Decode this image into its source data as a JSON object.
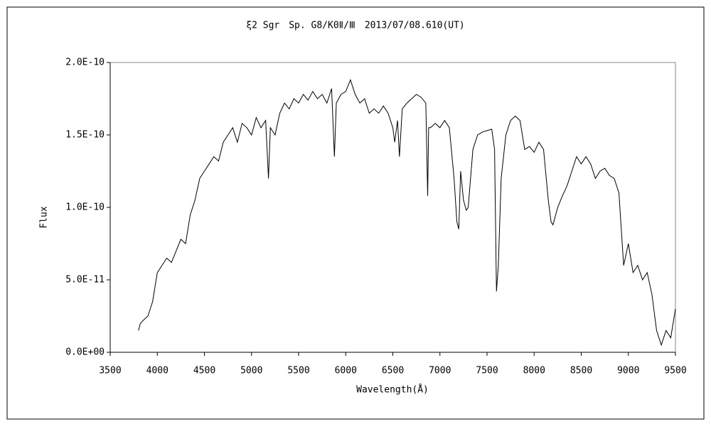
{
  "chart_data": {
    "type": "line",
    "title": "ξ2 Sgr　Sp. G8/K0Ⅱ/Ⅲ　2013/07/08.610(UT)",
    "x_label": "Wavelength(Å)",
    "y_label": "Flux",
    "x": [
      3800,
      3820,
      3850,
      3900,
      3950,
      4000,
      4050,
      4100,
      4150,
      4200,
      4250,
      4300,
      4350,
      4400,
      4450,
      4500,
      4550,
      4600,
      4650,
      4700,
      4750,
      4800,
      4850,
      4900,
      4950,
      5000,
      5050,
      5100,
      5150,
      5180,
      5200,
      5250,
      5300,
      5350,
      5400,
      5450,
      5500,
      5550,
      5600,
      5650,
      5700,
      5750,
      5800,
      5850,
      5880,
      5900,
      5950,
      6000,
      6050,
      6100,
      6150,
      6200,
      6250,
      6300,
      6350,
      6400,
      6450,
      6500,
      6520,
      6550,
      6570,
      6600,
      6650,
      6700,
      6750,
      6800,
      6850,
      6870,
      6880,
      6900,
      6950,
      7000,
      7050,
      7100,
      7150,
      7180,
      7200,
      7220,
      7250,
      7280,
      7300,
      7350,
      7400,
      7450,
      7500,
      7550,
      7580,
      7600,
      7620,
      7650,
      7700,
      7750,
      7800,
      7850,
      7900,
      7950,
      8000,
      8050,
      8100,
      8150,
      8180,
      8200,
      8250,
      8300,
      8350,
      8400,
      8450,
      8500,
      8550,
      8600,
      8650,
      8700,
      8750,
      8800,
      8850,
      8900,
      8950,
      9000,
      9050,
      9100,
      9150,
      9200,
      9250,
      9300,
      9350,
      9400,
      9450,
      9500
    ],
    "series": [
      {
        "name": "Flux",
        "color": "#000000",
        "values": [
          1.5e-11,
          2e-11,
          2.2e-11,
          2.5e-11,
          3.5e-11,
          5.5e-11,
          6e-11,
          6.5e-11,
          6.2e-11,
          7e-11,
          7.8e-11,
          7.5e-11,
          9.5e-11,
          1.05e-10,
          1.2e-10,
          1.25e-10,
          1.3e-10,
          1.35e-10,
          1.32e-10,
          1.45e-10,
          1.5e-10,
          1.55e-10,
          1.45e-10,
          1.58e-10,
          1.55e-10,
          1.5e-10,
          1.62e-10,
          1.55e-10,
          1.6e-10,
          1.2e-10,
          1.55e-10,
          1.5e-10,
          1.65e-10,
          1.72e-10,
          1.68e-10,
          1.75e-10,
          1.72e-10,
          1.78e-10,
          1.74e-10,
          1.8e-10,
          1.75e-10,
          1.78e-10,
          1.72e-10,
          1.82e-10,
          1.35e-10,
          1.72e-10,
          1.78e-10,
          1.8e-10,
          1.88e-10,
          1.78e-10,
          1.72e-10,
          1.75e-10,
          1.65e-10,
          1.68e-10,
          1.65e-10,
          1.7e-10,
          1.65e-10,
          1.55e-10,
          1.45e-10,
          1.6e-10,
          1.35e-10,
          1.68e-10,
          1.72e-10,
          1.75e-10,
          1.78e-10,
          1.76e-10,
          1.72e-10,
          1.08e-10,
          1.55e-10,
          1.55e-10,
          1.58e-10,
          1.55e-10,
          1.6e-10,
          1.55e-10,
          1.2e-10,
          9e-11,
          8.5e-11,
          1.25e-10,
          1.05e-10,
          9.8e-11,
          1e-10,
          1.4e-10,
          1.5e-10,
          1.52e-10,
          1.53e-10,
          1.54e-10,
          1.4e-10,
          4.2e-11,
          6e-11,
          1.2e-10,
          1.5e-10,
          1.6e-10,
          1.63e-10,
          1.6e-10,
          1.4e-10,
          1.42e-10,
          1.38e-10,
          1.45e-10,
          1.4e-10,
          1.05e-10,
          9e-11,
          8.8e-11,
          1e-10,
          1.08e-10,
          1.15e-10,
          1.25e-10,
          1.35e-10,
          1.3e-10,
          1.35e-10,
          1.3e-10,
          1.2e-10,
          1.25e-10,
          1.27e-10,
          1.22e-10,
          1.2e-10,
          1.1e-10,
          6e-11,
          7.5e-11,
          5.5e-11,
          6e-11,
          5e-11,
          5.5e-11,
          4e-11,
          1.5e-11,
          5e-12,
          1.5e-11,
          1e-11,
          3e-11
        ]
      }
    ],
    "xlim": [
      3500,
      9500
    ],
    "xticks": [
      3500,
      4000,
      4500,
      5000,
      5500,
      6000,
      6500,
      7000,
      7500,
      8000,
      8500,
      9000,
      9500
    ],
    "ylim": [
      0,
      2e-10
    ],
    "yticks": [
      {
        "value": 0,
        "label": "0.0E+00"
      },
      {
        "value": 5e-11,
        "label": "5.0E-11"
      },
      {
        "value": 1e-10,
        "label": "1.0E-10"
      },
      {
        "value": 1.5e-10,
        "label": "1.5E-10"
      },
      {
        "value": 2e-10,
        "label": "2.0E-10"
      }
    ],
    "grid": false
  }
}
